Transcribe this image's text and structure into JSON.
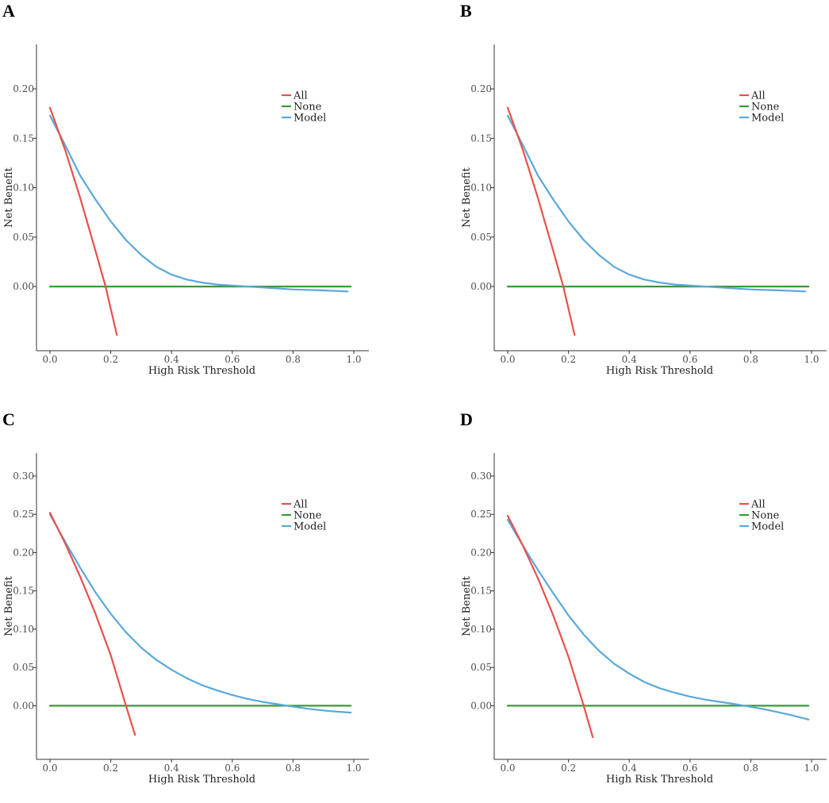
{
  "chart_data": [
    {
      "panel": "A",
      "type": "line",
      "xlabel": "High Risk Threshold",
      "ylabel": "Net Benefit",
      "xlim": [
        0.0,
        1.0
      ],
      "ylim": [
        -0.065,
        0.245
      ],
      "xticks": [
        "0.0",
        "0.2",
        "0.4",
        "0.6",
        "0.8",
        "1.0"
      ],
      "yticks": [
        "0.00",
        "0.05",
        "0.10",
        "0.15",
        "0.20"
      ],
      "legend": [
        "All",
        "None",
        "Model"
      ],
      "legend_position": "top-right",
      "series": [
        {
          "name": "All",
          "color": "#e8504a",
          "points": [
            [
              0.0,
              0.181
            ],
            [
              0.05,
              0.138
            ],
            [
              0.1,
              0.089
            ],
            [
              0.15,
              0.036
            ],
            [
              0.183,
              0.0
            ],
            [
              0.22,
              -0.049
            ]
          ]
        },
        {
          "name": "None",
          "color": "#3a9a3a",
          "points": [
            [
              0.0,
              0.0
            ],
            [
              0.99,
              0.0
            ]
          ]
        },
        {
          "name": "Model",
          "color": "#5aa8dc",
          "points": [
            [
              0.0,
              0.173
            ],
            [
              0.05,
              0.143
            ],
            [
              0.1,
              0.112
            ],
            [
              0.15,
              0.088
            ],
            [
              0.2,
              0.066
            ],
            [
              0.25,
              0.047
            ],
            [
              0.3,
              0.032
            ],
            [
              0.35,
              0.02
            ],
            [
              0.4,
              0.012
            ],
            [
              0.45,
              0.007
            ],
            [
              0.5,
              0.004
            ],
            [
              0.55,
              0.002
            ],
            [
              0.6,
              0.001
            ],
            [
              0.65,
              0.0
            ],
            [
              0.7,
              -0.001
            ],
            [
              0.8,
              -0.003
            ],
            [
              0.9,
              -0.004
            ],
            [
              0.98,
              -0.005
            ]
          ]
        }
      ]
    },
    {
      "panel": "B",
      "type": "line",
      "xlabel": "High Risk Threshold",
      "ylabel": "Net Benefit",
      "xlim": [
        0.0,
        1.0
      ],
      "ylim": [
        -0.065,
        0.245
      ],
      "xticks": [
        "0.0",
        "0.2",
        "0.4",
        "0.6",
        "0.8",
        "1.0"
      ],
      "yticks": [
        "0.00",
        "0.05",
        "0.10",
        "0.15",
        "0.20"
      ],
      "legend": [
        "All",
        "None",
        "Model"
      ],
      "legend_position": "top-right",
      "series": [
        {
          "name": "All",
          "color": "#e8504a",
          "points": [
            [
              0.0,
              0.181
            ],
            [
              0.05,
              0.138
            ],
            [
              0.1,
              0.089
            ],
            [
              0.15,
              0.036
            ],
            [
              0.183,
              0.0
            ],
            [
              0.22,
              -0.049
            ]
          ]
        },
        {
          "name": "None",
          "color": "#3a9a3a",
          "points": [
            [
              0.0,
              0.0
            ],
            [
              0.99,
              0.0
            ]
          ]
        },
        {
          "name": "Model",
          "color": "#5aa8dc",
          "points": [
            [
              0.0,
              0.173
            ],
            [
              0.05,
              0.143
            ],
            [
              0.1,
              0.112
            ],
            [
              0.15,
              0.088
            ],
            [
              0.2,
              0.066
            ],
            [
              0.25,
              0.047
            ],
            [
              0.3,
              0.032
            ],
            [
              0.35,
              0.02
            ],
            [
              0.4,
              0.012
            ],
            [
              0.45,
              0.007
            ],
            [
              0.5,
              0.004
            ],
            [
              0.55,
              0.002
            ],
            [
              0.6,
              0.001
            ],
            [
              0.65,
              0.0
            ],
            [
              0.7,
              -0.001
            ],
            [
              0.8,
              -0.003
            ],
            [
              0.9,
              -0.004
            ],
            [
              0.98,
              -0.005
            ]
          ]
        }
      ]
    },
    {
      "panel": "C",
      "type": "line",
      "xlabel": "High Risk Threshold",
      "ylabel": "Net Benefit",
      "xlim": [
        0.0,
        1.0
      ],
      "ylim": [
        -0.07,
        0.33
      ],
      "xticks": [
        "0.0",
        "0.2",
        "0.4",
        "0.6",
        "0.8",
        "1.0"
      ],
      "yticks": [
        "0.00",
        "0.05",
        "0.10",
        "0.15",
        "0.20",
        "0.25",
        "0.30"
      ],
      "legend": [
        "All",
        "None",
        "Model"
      ],
      "legend_position": "top-right",
      "series": [
        {
          "name": "All",
          "color": "#e8504a",
          "points": [
            [
              0.0,
              0.252
            ],
            [
              0.05,
              0.212
            ],
            [
              0.1,
              0.168
            ],
            [
              0.15,
              0.12
            ],
            [
              0.2,
              0.066
            ],
            [
              0.25,
              0.0
            ],
            [
              0.28,
              -0.038
            ]
          ]
        },
        {
          "name": "None",
          "color": "#3a9a3a",
          "points": [
            [
              0.0,
              0.0
            ],
            [
              0.99,
              0.0
            ]
          ]
        },
        {
          "name": "Model",
          "color": "#5aa8dc",
          "points": [
            [
              0.0,
              0.25
            ],
            [
              0.05,
              0.214
            ],
            [
              0.1,
              0.18
            ],
            [
              0.15,
              0.148
            ],
            [
              0.2,
              0.12
            ],
            [
              0.25,
              0.096
            ],
            [
              0.3,
              0.076
            ],
            [
              0.35,
              0.06
            ],
            [
              0.4,
              0.047
            ],
            [
              0.45,
              0.036
            ],
            [
              0.5,
              0.027
            ],
            [
              0.55,
              0.02
            ],
            [
              0.6,
              0.014
            ],
            [
              0.65,
              0.009
            ],
            [
              0.7,
              0.005
            ],
            [
              0.75,
              0.002
            ],
            [
              0.78,
              0.0
            ],
            [
              0.85,
              -0.004
            ],
            [
              0.92,
              -0.007
            ],
            [
              0.99,
              -0.009
            ]
          ]
        }
      ]
    },
    {
      "panel": "D",
      "type": "line",
      "xlabel": "High Risk Threshold",
      "ylabel": "Net Benefit",
      "xlim": [
        0.0,
        1.0
      ],
      "ylim": [
        -0.07,
        0.33
      ],
      "xticks": [
        "0.0",
        "0.2",
        "0.4",
        "0.6",
        "0.8",
        "1.0"
      ],
      "yticks": [
        "0.00",
        "0.05",
        "0.10",
        "0.15",
        "0.20",
        "0.25",
        "0.30"
      ],
      "legend": [
        "All",
        "None",
        "Model"
      ],
      "legend_position": "top-right",
      "series": [
        {
          "name": "All",
          "color": "#e8504a",
          "points": [
            [
              0.0,
              0.248
            ],
            [
              0.05,
              0.209
            ],
            [
              0.1,
              0.166
            ],
            [
              0.15,
              0.118
            ],
            [
              0.2,
              0.064
            ],
            [
              0.25,
              0.0
            ],
            [
              0.28,
              -0.041
            ]
          ]
        },
        {
          "name": "None",
          "color": "#3a9a3a",
          "points": [
            [
              0.0,
              0.0
            ],
            [
              0.99,
              0.0
            ]
          ]
        },
        {
          "name": "Model",
          "color": "#5aa8dc",
          "points": [
            [
              0.0,
              0.243
            ],
            [
              0.05,
              0.209
            ],
            [
              0.1,
              0.177
            ],
            [
              0.15,
              0.147
            ],
            [
              0.2,
              0.118
            ],
            [
              0.25,
              0.093
            ],
            [
              0.3,
              0.072
            ],
            [
              0.35,
              0.055
            ],
            [
              0.4,
              0.042
            ],
            [
              0.45,
              0.031
            ],
            [
              0.5,
              0.023
            ],
            [
              0.55,
              0.017
            ],
            [
              0.6,
              0.012
            ],
            [
              0.65,
              0.008
            ],
            [
              0.7,
              0.005
            ],
            [
              0.75,
              0.002
            ],
            [
              0.78,
              0.0
            ],
            [
              0.85,
              -0.005
            ],
            [
              0.92,
              -0.011
            ],
            [
              0.99,
              -0.018
            ]
          ]
        }
      ]
    }
  ]
}
